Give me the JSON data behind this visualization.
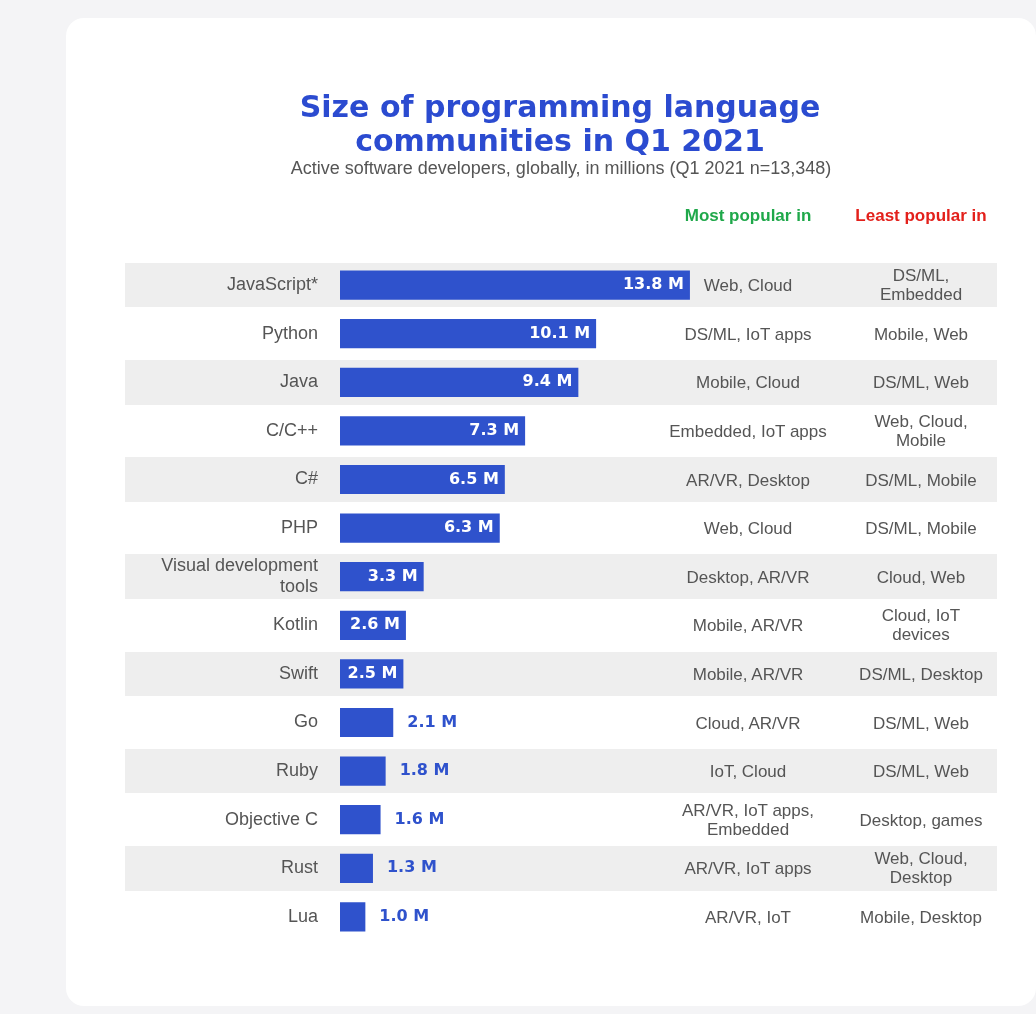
{
  "chart_data": {
    "type": "bar",
    "orientation": "horizontal",
    "title": "Size of programming language communities in Q1 2021",
    "subtitle": "Active software developers, globally, in millions (Q1 2021 n=13,348)",
    "categories": [
      "JavaScript*",
      "Python",
      "Java",
      "C/C++",
      "C#",
      "PHP",
      "Visual development tools",
      "Kotlin",
      "Swift",
      "Go",
      "Ruby",
      "Objective C",
      "Rust",
      "Lua"
    ],
    "values": [
      13.8,
      10.1,
      9.4,
      7.3,
      6.5,
      6.3,
      3.3,
      2.6,
      2.5,
      2.1,
      1.8,
      1.6,
      1.3,
      1.0
    ],
    "value_labels": [
      "13.8 M",
      "10.1 M",
      "9.4 M",
      "7.3 M",
      "6.5 M",
      "6.3 M",
      "3.3 M",
      "2.6 M",
      "2.5 M",
      "2.1 M",
      "1.8 M",
      "1.6 M",
      "1.3 M",
      "1.0 M"
    ],
    "color": "#2f52cc",
    "grid": false,
    "legend": false,
    "tick_labels": "y",
    "annotations": [
      "Most popular in",
      "Least popular in",
      "Web, Cloud",
      "DS/ML, Embedded",
      "DS/ML, IoT apps",
      "Mobile, Web",
      "Mobile, Cloud",
      "DS/ML, Web",
      "Embedded, IoT apps",
      "Web, Cloud, Mobile",
      "AR/VR, Desktop",
      "DS/ML, Mobile",
      "Web, Cloud",
      "DS/ML, Mobile",
      "Desktop, AR/VR",
      "Cloud, Web",
      "Mobile, AR/VR",
      "Cloud, IoT devices",
      "Mobile, AR/VR",
      "DS/ML, Desktop",
      "Cloud, AR/VR",
      "DS/ML, Web",
      "IoT, Cloud",
      "DS/ML, Web",
      "AR/VR, IoT apps, Embedded",
      "Desktop, games",
      "AR/VR, IoT apps",
      "Web, Cloud, Desktop",
      "AR/VR, IoT",
      "Mobile, Desktop"
    ]
  }
}
